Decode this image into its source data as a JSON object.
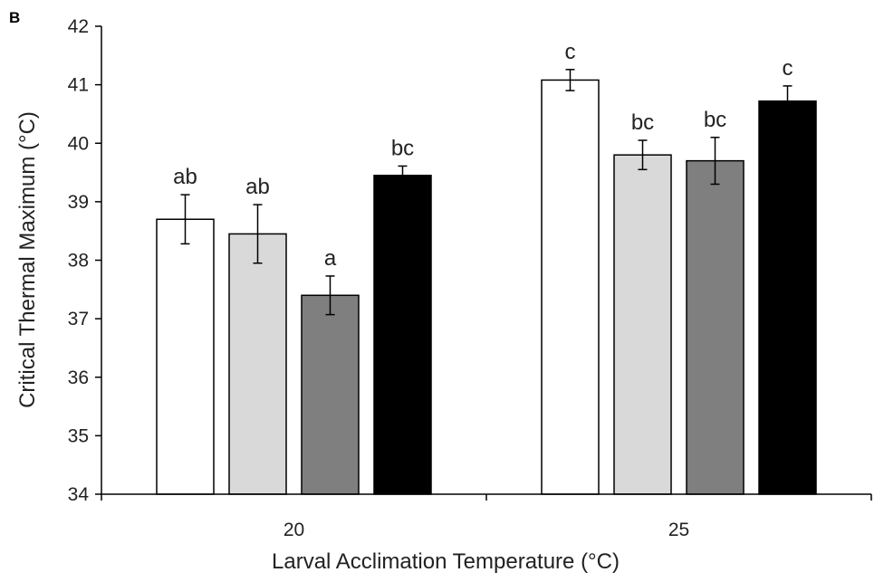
{
  "panel_label": "B",
  "chart_data": {
    "type": "bar",
    "categories": [
      "20",
      "25"
    ],
    "xlabel": "Larval Acclimation Temperature (°C)",
    "ylabel": "Critical Thermal Maximum (°C)",
    "ylim": [
      34,
      42
    ],
    "yticks": [
      34,
      35,
      36,
      37,
      38,
      39,
      40,
      41,
      42
    ],
    "grid": false,
    "series": [
      {
        "color": "#ffffff",
        "values": [
          38.7,
          41.08
        ],
        "errors": [
          0.42,
          0.18
        ],
        "labels": [
          "ab",
          "c"
        ]
      },
      {
        "color": "#d9d9d9",
        "values": [
          38.45,
          39.8
        ],
        "errors": [
          0.5,
          0.25
        ],
        "labels": [
          "ab",
          "bc"
        ]
      },
      {
        "color": "#7f7f7f",
        "values": [
          37.4,
          39.7
        ],
        "errors": [
          0.33,
          0.4
        ],
        "labels": [
          "a",
          "bc"
        ]
      },
      {
        "color": "#000000",
        "values": [
          39.45,
          40.72
        ],
        "errors": [
          0.16,
          0.26
        ],
        "labels": [
          "bc",
          "c"
        ]
      }
    ]
  }
}
